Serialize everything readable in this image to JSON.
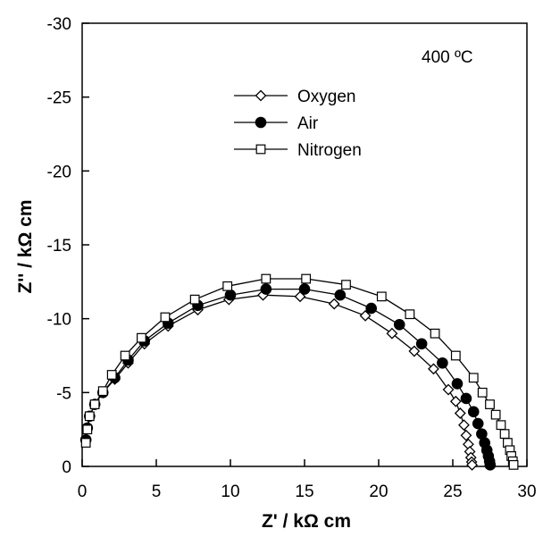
{
  "chart_data": {
    "type": "scatter",
    "title": "",
    "xlabel": "Z' / kΩ cm",
    "ylabel": "Z'' / kΩ cm",
    "annotation": "400 ºC",
    "xlim": [
      0,
      30
    ],
    "ylim": [
      0,
      -30
    ],
    "y_axis_inverted": true,
    "x_ticks": [
      0,
      5,
      10,
      15,
      20,
      25,
      30
    ],
    "y_ticks": [
      0,
      -5,
      -10,
      -15,
      -20,
      -25,
      -30
    ],
    "grid": false,
    "legend_position": "top-center",
    "series": [
      {
        "name": "Oxygen",
        "marker": "diamond-open",
        "color": "#000000",
        "x": [
          0.25,
          0.35,
          0.5,
          0.85,
          1.4,
          2.2,
          3.1,
          4.2,
          5.8,
          7.8,
          9.9,
          12.2,
          14.7,
          17.0,
          19.1,
          20.9,
          22.4,
          23.7,
          24.7,
          25.2,
          25.5,
          25.75,
          25.9,
          26.05,
          26.15,
          26.22,
          26.27,
          26.3
        ],
        "y": [
          -1.8,
          -2.6,
          -3.4,
          -4.2,
          -5.0,
          -5.9,
          -7.0,
          -8.3,
          -9.5,
          -10.6,
          -11.3,
          -11.6,
          -11.5,
          -11.0,
          -10.2,
          -9.0,
          -7.8,
          -6.6,
          -5.2,
          -4.4,
          -3.6,
          -2.8,
          -2.1,
          -1.5,
          -1.0,
          -0.6,
          -0.3,
          -0.1
        ]
      },
      {
        "name": "Air",
        "marker": "circle-filled",
        "color": "#000000",
        "x": [
          0.25,
          0.35,
          0.5,
          0.85,
          1.4,
          2.2,
          3.1,
          4.2,
          5.8,
          7.8,
          10.0,
          12.4,
          15.0,
          17.4,
          19.5,
          21.4,
          22.9,
          24.3,
          25.3,
          25.9,
          26.4,
          26.7,
          26.95,
          27.15,
          27.3,
          27.4,
          27.48,
          27.52
        ],
        "y": [
          -1.8,
          -2.6,
          -3.4,
          -4.2,
          -5.0,
          -6.0,
          -7.2,
          -8.5,
          -9.7,
          -10.9,
          -11.6,
          -12.0,
          -12.0,
          -11.6,
          -10.7,
          -9.6,
          -8.3,
          -7.0,
          -5.6,
          -4.6,
          -3.7,
          -2.9,
          -2.2,
          -1.6,
          -1.1,
          -0.7,
          -0.35,
          -0.1
        ]
      },
      {
        "name": "Nitrogen",
        "marker": "square-open",
        "color": "#000000",
        "x": [
          0.25,
          0.35,
          0.5,
          0.85,
          1.4,
          2.0,
          2.9,
          4.0,
          5.6,
          7.6,
          9.8,
          12.4,
          15.1,
          17.8,
          20.2,
          22.1,
          23.8,
          25.2,
          26.4,
          27.0,
          27.5,
          27.9,
          28.25,
          28.5,
          28.7,
          28.85,
          28.95,
          29.05,
          29.1
        ],
        "y": [
          -1.6,
          -2.5,
          -3.4,
          -4.2,
          -5.1,
          -6.2,
          -7.5,
          -8.7,
          -10.1,
          -11.3,
          -12.2,
          -12.7,
          -12.7,
          -12.3,
          -11.5,
          -10.3,
          -9.0,
          -7.5,
          -6.0,
          -5.0,
          -4.2,
          -3.5,
          -2.8,
          -2.2,
          -1.6,
          -1.1,
          -0.7,
          -0.35,
          -0.1
        ]
      }
    ]
  }
}
